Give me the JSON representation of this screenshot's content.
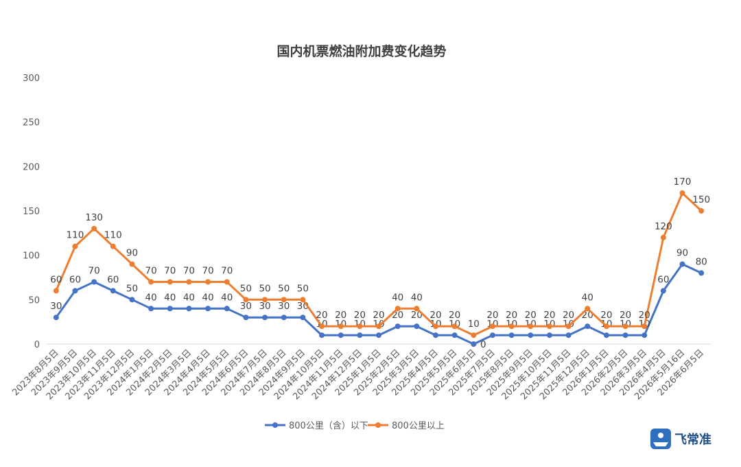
{
  "logo": {
    "text": "飞常准"
  },
  "chart_data": {
    "type": "line",
    "title": "国内机票燃油附加费变化趋势",
    "xlabel": "",
    "ylabel": "",
    "ylim": [
      0,
      300
    ],
    "yticks": [
      0,
      50,
      100,
      150,
      200,
      250,
      300
    ],
    "grid": "horizontal-baseline-only",
    "legend": "bottom",
    "categories": [
      "2023年8月5日",
      "2023年9月5日",
      "2023年10月5日",
      "2023年11月5日",
      "2023年12月5日",
      "2024年1月5日",
      "2024年2月5日",
      "2024年3月5日",
      "2024年4月5日",
      "2024年5月5日",
      "2024年6月5日",
      "2024年7月5日",
      "2024年8月5日",
      "2024年9月5日",
      "2024年10月5日",
      "2024年11月5日",
      "2024年12月5日",
      "2025年1月5日",
      "2025年2月5日",
      "2025年3月5日",
      "2025年4月5日",
      "2025年5月5日",
      "2025年6月5日",
      "2025年7月5日",
      "2025年8月5日",
      "2025年9月5日",
      "2025年10月5日",
      "2025年11月5日",
      "2025年12月5日",
      "2026年1月5日",
      "2026年2月5日",
      "2026年3月5日",
      "2026年4月5日",
      "2026年5月16日",
      "2026年6月5日"
    ],
    "series": [
      {
        "name": "800公里（含）以下",
        "color": "#4472c4",
        "values": [
          30,
          60,
          70,
          60,
          50,
          40,
          40,
          40,
          40,
          40,
          30,
          30,
          30,
          30,
          10,
          10,
          10,
          10,
          20,
          20,
          10,
          10,
          0,
          10,
          10,
          10,
          10,
          10,
          20,
          10,
          10,
          10,
          60,
          90,
          80
        ]
      },
      {
        "name": "800公里以上",
        "color": "#ed7d31",
        "values": [
          60,
          110,
          130,
          110,
          90,
          70,
          70,
          70,
          70,
          70,
          50,
          50,
          50,
          50,
          20,
          20,
          20,
          20,
          40,
          40,
          20,
          20,
          10,
          20,
          20,
          20,
          20,
          20,
          40,
          20,
          20,
          20,
          120,
          170,
          150
        ]
      }
    ]
  }
}
